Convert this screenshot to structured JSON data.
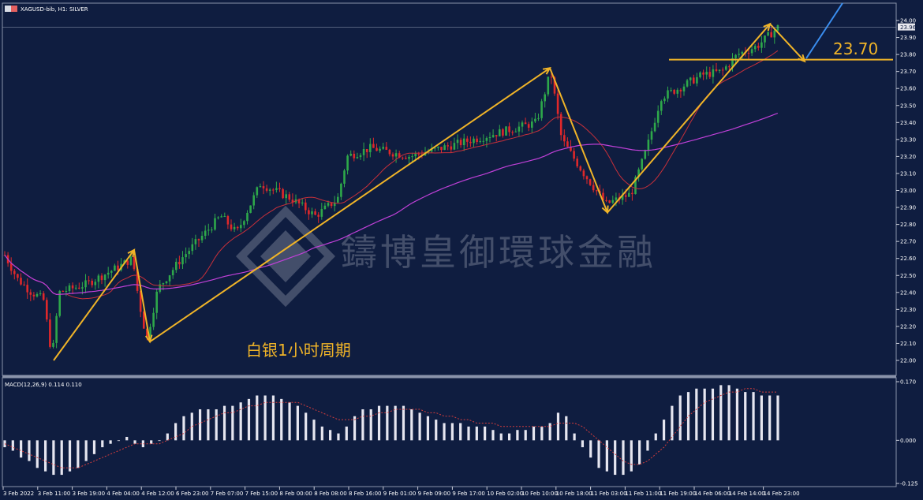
{
  "window": {
    "title": "XAGUSD-bib, H1:  SILVER",
    "icon": "chart-window-icon"
  },
  "annotation": {
    "cn_label": "白银1小时周期",
    "level_label": "23.70"
  },
  "watermark": {
    "text": "鑄博皇御環球金融",
    "logo": "diamond-logo-icon"
  },
  "macd": {
    "label": "MACD(12,26,9) 0.114 0.110",
    "scale_labels": [
      "0.170",
      "0.000",
      "-0.125"
    ]
  },
  "colors": {
    "background": "#0f1d40",
    "bull": "#2ea84a",
    "bear": "#e0282a",
    "ma_fast": "#c8303a",
    "ma_slow": "#c040d8",
    "annotation": "#f0b428",
    "arrow": "#3a8ef0",
    "histogram": "#e6e6f0",
    "signal": "#d23c3c"
  },
  "chart_data": [
    {
      "type": "candlestick",
      "title": "XAGUSD-bib, H1:  SILVER",
      "y_ticks": [
        "24.00",
        "23.90",
        "23.80",
        "23.70",
        "23.60",
        "23.50",
        "23.40",
        "23.30",
        "23.20",
        "23.10",
        "23.00",
        "22.90",
        "22.80",
        "22.70",
        "22.60",
        "22.50",
        "22.40",
        "22.30",
        "22.20",
        "22.10",
        "22.00"
      ],
      "current_price": "23.96",
      "ylim": [
        21.95,
        24.06
      ],
      "x_ticks": [
        "3 Feb 2022",
        "3 Feb 11:00",
        "3 Feb 19:00",
        "4 Feb 04:00",
        "4 Feb 12:00",
        "6 Feb 23:00",
        "7 Feb 07:00",
        "7 Feb 15:00",
        "8 Feb 00:00",
        "8 Feb 08:00",
        "8 Feb 16:00",
        "9 Feb 01:00",
        "9 Feb 09:00",
        "9 Feb 17:00",
        "10 Feb 02:00",
        "10 Feb 10:00",
        "10 Feb 18:00",
        "11 Feb 03:00",
        "11 Feb 11:00",
        "11 Feb 19:00",
        "14 Feb 06:00",
        "14 Feb 14:00",
        "14 Feb 23:00"
      ],
      "swing_points": [
        22.0,
        22.65,
        22.11,
        23.72,
        22.87,
        23.98,
        23.76
      ],
      "horizontal_level": 23.77
    },
    {
      "type": "bar",
      "title": "MACD(12,26,9) 0.114 0.110",
      "ylim": [
        -0.125,
        0.17
      ],
      "y_ticks": [
        "0.170",
        "0.000",
        "-0.125"
      ],
      "histogram": [
        -0.02,
        -0.03,
        -0.05,
        -0.06,
        -0.08,
        -0.09,
        -0.1,
        -0.1,
        -0.09,
        -0.08,
        -0.06,
        -0.04,
        -0.02,
        -0.01,
        0.0,
        0.01,
        -0.01,
        -0.02,
        -0.01,
        0.0,
        0.02,
        0.05,
        0.07,
        0.08,
        0.09,
        0.09,
        0.09,
        0.1,
        0.1,
        0.11,
        0.12,
        0.13,
        0.13,
        0.13,
        0.12,
        0.11,
        0.1,
        0.08,
        0.06,
        0.04,
        0.03,
        0.02,
        0.04,
        0.07,
        0.09,
        0.09,
        0.1,
        0.1,
        0.1,
        0.1,
        0.09,
        0.08,
        0.07,
        0.06,
        0.05,
        0.05,
        0.05,
        0.04,
        0.04,
        0.04,
        0.03,
        0.02,
        0.02,
        0.03,
        0.03,
        0.04,
        0.04,
        0.05,
        0.08,
        0.07,
        0.02,
        -0.02,
        -0.05,
        -0.08,
        -0.09,
        -0.1,
        -0.1,
        -0.09,
        -0.07,
        -0.03,
        0.02,
        0.06,
        0.1,
        0.13,
        0.14,
        0.15,
        0.15,
        0.15,
        0.16,
        0.16,
        0.15,
        0.14,
        0.14,
        0.13,
        0.13,
        0.13
      ],
      "signal": [
        -0.01,
        -0.02,
        -0.03,
        -0.04,
        -0.05,
        -0.06,
        -0.07,
        -0.08,
        -0.08,
        -0.08,
        -0.07,
        -0.06,
        -0.05,
        -0.04,
        -0.03,
        -0.02,
        -0.01,
        -0.01,
        -0.01,
        -0.01,
        0.0,
        0.01,
        0.02,
        0.04,
        0.05,
        0.06,
        0.07,
        0.08,
        0.08,
        0.09,
        0.1,
        0.1,
        0.11,
        0.11,
        0.11,
        0.11,
        0.11,
        0.1,
        0.09,
        0.08,
        0.07,
        0.06,
        0.06,
        0.06,
        0.07,
        0.07,
        0.08,
        0.08,
        0.09,
        0.09,
        0.09,
        0.09,
        0.08,
        0.08,
        0.07,
        0.07,
        0.06,
        0.06,
        0.05,
        0.05,
        0.05,
        0.04,
        0.04,
        0.04,
        0.04,
        0.04,
        0.04,
        0.04,
        0.05,
        0.05,
        0.05,
        0.04,
        0.02,
        0.0,
        -0.02,
        -0.04,
        -0.06,
        -0.07,
        -0.07,
        -0.06,
        -0.04,
        -0.02,
        0.01,
        0.04,
        0.07,
        0.09,
        0.11,
        0.12,
        0.13,
        0.14,
        0.14,
        0.15,
        0.15,
        0.14,
        0.14,
        0.14
      ]
    }
  ]
}
